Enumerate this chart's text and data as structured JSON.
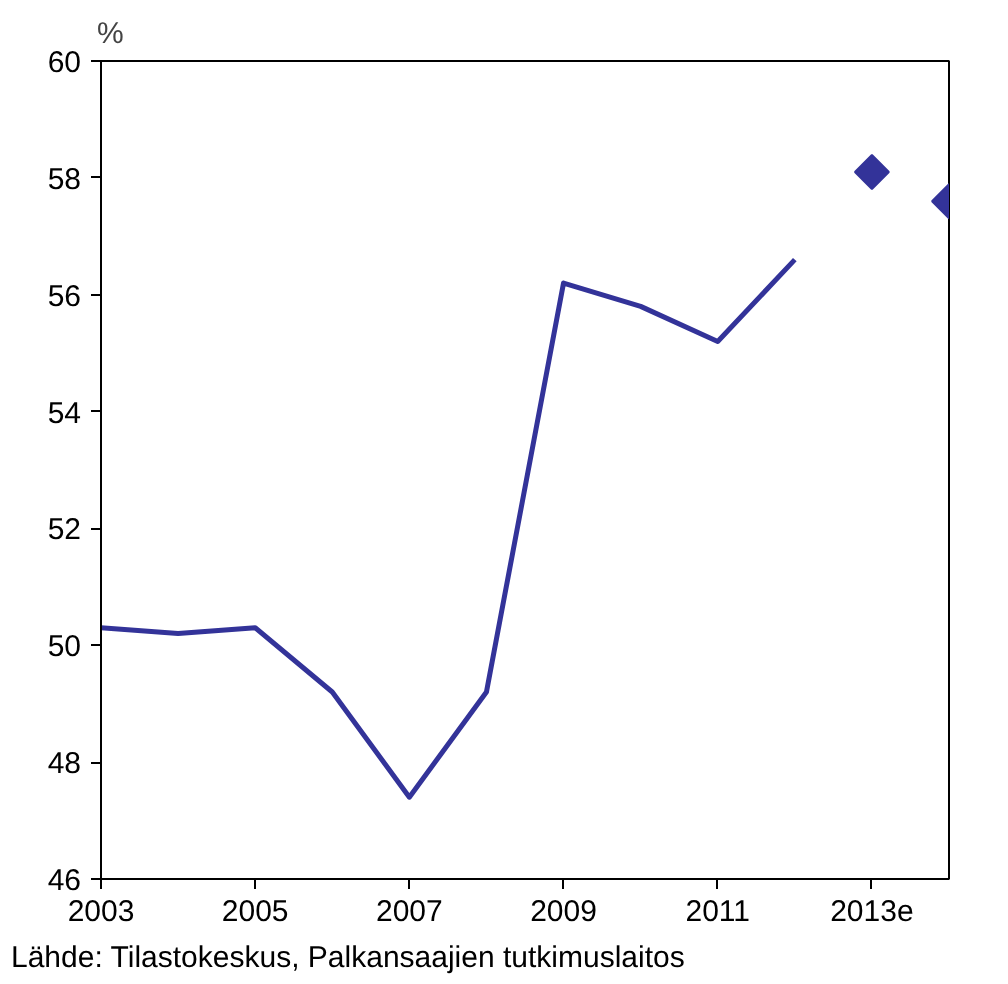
{
  "chart_data": {
    "type": "line",
    "ylabel": "%",
    "xlim": [
      2003,
      2014
    ],
    "ylim": [
      46,
      60
    ],
    "xticks": [
      2003,
      2005,
      2007,
      2009,
      2011,
      {
        "value": 2013,
        "label": "2013e"
      }
    ],
    "yticks": [
      46,
      48,
      50,
      52,
      54,
      56,
      58,
      60
    ],
    "grid": false,
    "series": [
      {
        "color": "#333399",
        "x": [
          2003,
          2004,
          2005,
          2006,
          2007,
          2008,
          2009,
          2010,
          2011,
          2012
        ],
        "values": [
          50.3,
          50.2,
          50.3,
          49.2,
          47.4,
          49.2,
          56.2,
          55.8,
          55.2,
          56.6
        ]
      },
      {
        "type": "scatter",
        "marker": "diamond",
        "color": "#333399",
        "x": [
          2013,
          2014
        ],
        "values": [
          58.1,
          57.6
        ]
      }
    ],
    "annotations": [
      "Lähde: Tilastokeskus, Palkansaajien tutkimuslaitos"
    ]
  }
}
